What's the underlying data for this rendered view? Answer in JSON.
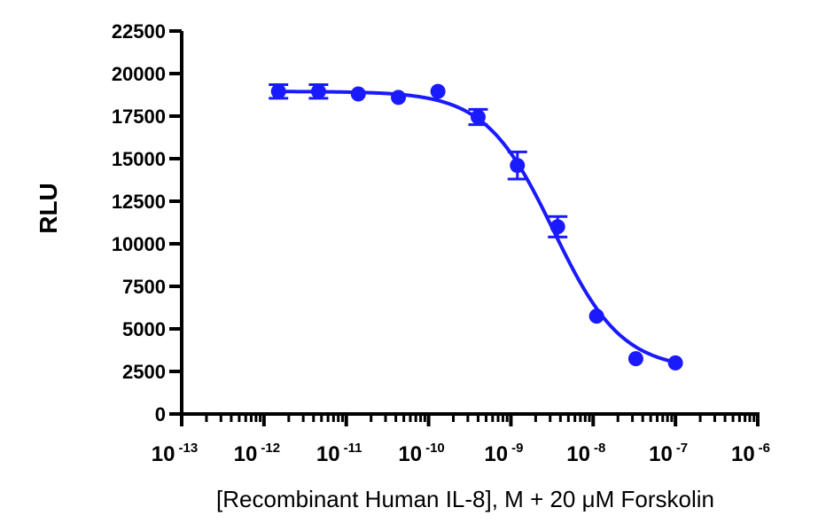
{
  "chart_data": {
    "type": "scatter",
    "title": "",
    "xlabel": "[Recombinant Human IL-8], M + 20 μM Forskolin",
    "ylabel": "RLU",
    "x_scale": "log",
    "xlim": [
      1e-13,
      1e-06
    ],
    "ylim": [
      0,
      22500
    ],
    "grid": false,
    "legend": "none",
    "x_ticks": [
      {
        "base": "10",
        "exp": "-13",
        "value": 1e-13
      },
      {
        "base": "10",
        "exp": "-12",
        "value": 1e-12
      },
      {
        "base": "10",
        "exp": "-11",
        "value": 1e-11
      },
      {
        "base": "10",
        "exp": "-10",
        "value": 1e-10
      },
      {
        "base": "10",
        "exp": "-9",
        "value": 1e-09
      },
      {
        "base": "10",
        "exp": "-8",
        "value": 1e-08
      },
      {
        "base": "10",
        "exp": "-7",
        "value": 1e-07
      },
      {
        "base": "10",
        "exp": "-6",
        "value": 1e-06
      }
    ],
    "y_ticks": [
      "0",
      "2500",
      "5000",
      "7500",
      "10000",
      "12500",
      "15000",
      "17500",
      "20000",
      "22500"
    ],
    "series": [
      {
        "color": "#1a1aff",
        "points": [
          {
            "x": 1.5e-12,
            "y": 18950,
            "err": 400
          },
          {
            "x": 4.6e-12,
            "y": 18950,
            "err": 400
          },
          {
            "x": 1.4e-11,
            "y": 18800,
            "err": 0
          },
          {
            "x": 4.3e-11,
            "y": 18600,
            "err": 0
          },
          {
            "x": 1.3e-10,
            "y": 18950,
            "err": 0
          },
          {
            "x": 4e-10,
            "y": 17450,
            "err": 450
          },
          {
            "x": 1.2e-09,
            "y": 14600,
            "err": 800
          },
          {
            "x": 3.7e-09,
            "y": 11000,
            "err": 600
          },
          {
            "x": 1.1e-08,
            "y": 5750,
            "err": 0
          },
          {
            "x": 3.3e-08,
            "y": 3250,
            "err": 0
          },
          {
            "x": 1e-07,
            "y": 3000,
            "err": 0
          }
        ],
        "fit": {
          "model": "4PL",
          "top": 18950,
          "bottom": 2600,
          "ec50": 3.3e-09,
          "hill": 1.05,
          "x_range": [
            1.5e-12,
            1e-07
          ]
        }
      }
    ]
  }
}
